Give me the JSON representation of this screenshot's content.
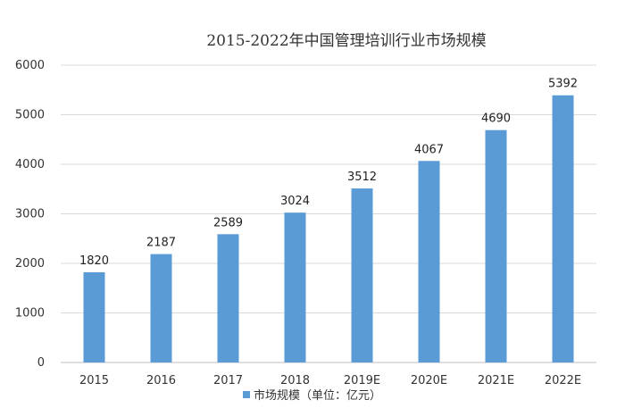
{
  "chart_data": {
    "type": "bar",
    "title": "2015-2022年中国管理培训行业市场规模",
    "categories": [
      "2015",
      "2016",
      "2017",
      "2018",
      "2019E",
      "2020E",
      "2021E",
      "2022E"
    ],
    "series": [
      {
        "name": "市场规模（单位：亿元）",
        "values": [
          1820,
          2187,
          2589,
          3024,
          3512,
          4067,
          4690,
          5392
        ],
        "color": "#5B9BD5"
      }
    ],
    "ylim": [
      0,
      6000
    ],
    "yticks": [
      0,
      1000,
      2000,
      3000,
      4000,
      5000,
      6000
    ],
    "grid": true,
    "legend_position": "bottom",
    "data_labels": true
  }
}
